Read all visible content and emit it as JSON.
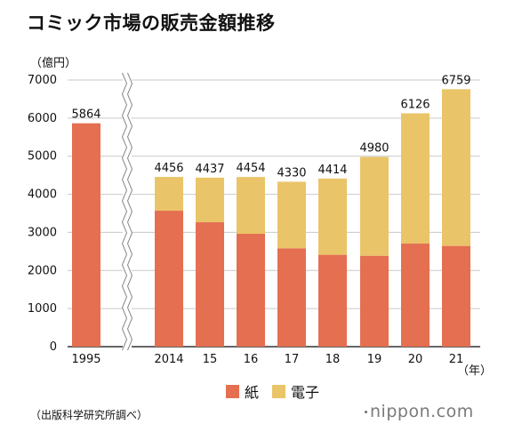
{
  "title": "コミック市場の販売金額推移",
  "unit_label": "（億円）",
  "year_unit_label": "（年）",
  "legend": [
    {
      "label": "紙",
      "color": "#e46f51"
    },
    {
      "label": "電子",
      "color": "#eac468"
    }
  ],
  "source": "（出版科学研究所調べ）",
  "logo": "nippon.com",
  "chart_data": {
    "type": "bar",
    "stacked": true,
    "categories": [
      "1995",
      "2014",
      "15",
      "16",
      "17",
      "18",
      "19",
      "20",
      "21"
    ],
    "series": [
      {
        "name": "紙",
        "color": "#e46f51",
        "values": [
          5864,
          3569,
          3266,
          2963,
          2583,
          2412,
          2387,
          2706,
          2645
        ]
      },
      {
        "name": "電子",
        "color": "#eac468",
        "values": [
          0,
          887,
          1171,
          1491,
          1747,
          2002,
          2593,
          3420,
          4114
        ]
      }
    ],
    "totals": [
      5864,
      4456,
      4437,
      4454,
      4330,
      4414,
      4980,
      6126,
      6759
    ],
    "ylim": [
      0,
      7000
    ],
    "yticks": [
      0,
      1000,
      2000,
      3000,
      4000,
      5000,
      6000,
      7000
    ],
    "axis_break_after": "1995",
    "grid": true
  }
}
